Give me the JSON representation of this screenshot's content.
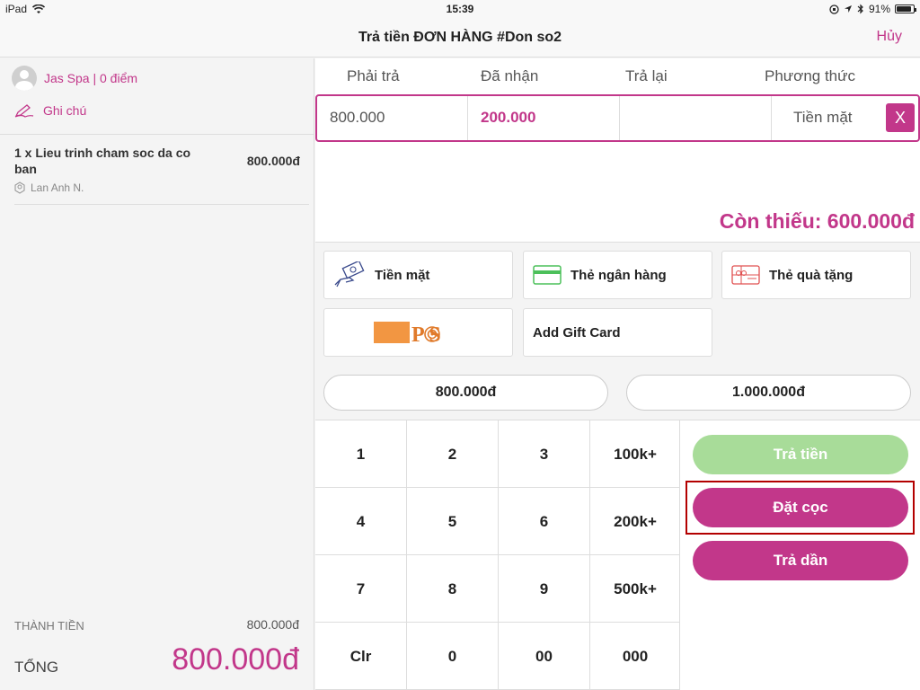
{
  "status": {
    "device": "iPad",
    "time": "15:39",
    "battery": "91%",
    "battery_level": 0.91
  },
  "nav": {
    "title": "Trả tiền ĐƠN HÀNG #Don so2",
    "cancel": "Hủy"
  },
  "order": {
    "customer": "Jas Spa | 0 điểm",
    "note": "Ghi chú",
    "items": [
      {
        "name": "1 x Lieu trinh cham soc da co ban",
        "price": "800.000đ",
        "staff": "Lan Anh N."
      }
    ],
    "subtotal_label": "THÀNH TIỀN",
    "subtotal_value": "800.000đ",
    "total_label": "TỔNG",
    "total_value": "800.000đ"
  },
  "payment": {
    "headers": [
      "Phải trả",
      "Đã nhận",
      "Trả lại",
      "Phương thức"
    ],
    "row": {
      "due": "800.000",
      "received": "200.000",
      "change": "",
      "method": "Tiền mặt",
      "remove": "X"
    },
    "remaining": "Còn thiếu: 600.000đ"
  },
  "methods": {
    "cash": "Tiền mặt",
    "bank_card": "Thẻ ngân hàng",
    "gift_card": "Thẻ quà tặng",
    "pos_text": "P S",
    "add_gift_card": "Add Gift Card"
  },
  "quick_amounts": [
    "800.000đ",
    "1.000.000đ"
  ],
  "keypad": [
    "1",
    "2",
    "3",
    "100k+",
    "4",
    "5",
    "6",
    "200k+",
    "7",
    "8",
    "9",
    "500k+",
    "Clr",
    "0",
    "00",
    "000"
  ],
  "actions": {
    "pay": "Trả tiền",
    "deposit": "Đặt cọc",
    "installment": "Trả dần"
  },
  "colors": {
    "accent": "#c2378a",
    "pay_disabled": "#a8dc99",
    "highlight": "#b30000"
  }
}
